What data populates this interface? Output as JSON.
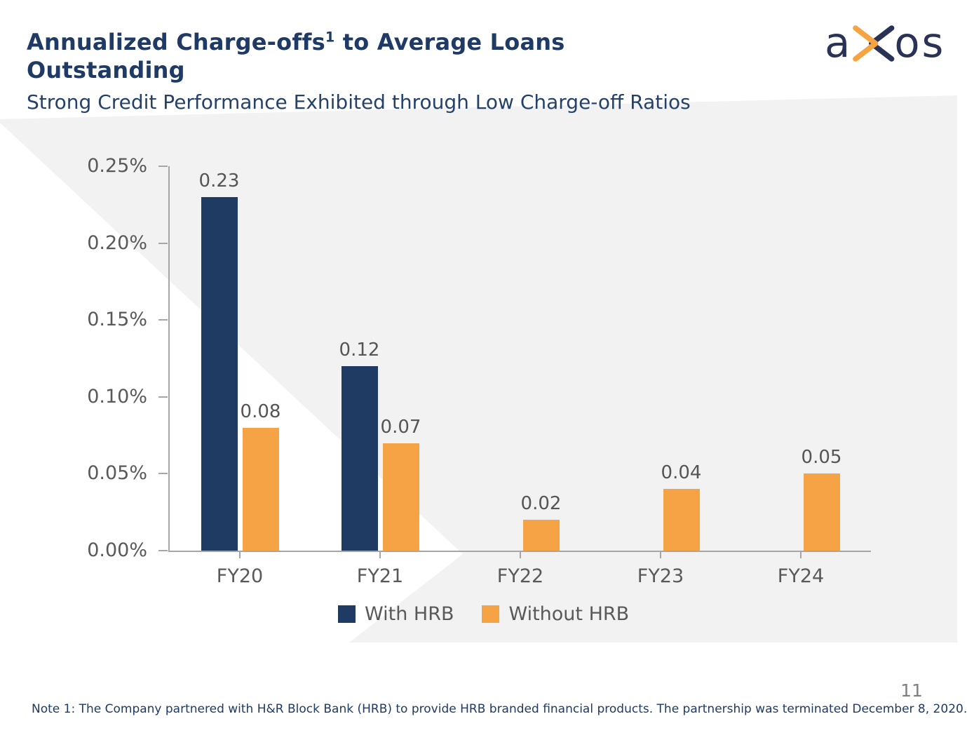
{
  "header": {
    "title_line1_pre": "Annualized Charge-offs",
    "title_superscript": "1",
    "title_line1_post": " to Average Loans",
    "title_line2": "Outstanding",
    "subtitle": "Strong Credit Performance Exhibited through Low Charge-off Ratios"
  },
  "logo": {
    "letter_a": "a",
    "letters_os": "os",
    "navy": "#2a3356",
    "orange": "#f6a441"
  },
  "chart_data": {
    "type": "bar",
    "title": "Annualized Charge-offs to Average Loans Outstanding",
    "categories": [
      "FY20",
      "FY21",
      "FY22",
      "FY23",
      "FY24"
    ],
    "series": [
      {
        "name": "With HRB",
        "color": "#1f3a63",
        "values": [
          0.23,
          0.12,
          null,
          null,
          null
        ]
      },
      {
        "name": "Without HRB",
        "color": "#f5a344",
        "values": [
          0.08,
          0.07,
          0.02,
          0.04,
          0.05
        ]
      }
    ],
    "y_ticks": [
      "0.00%",
      "0.05%",
      "0.10%",
      "0.15%",
      "0.20%",
      "0.25%"
    ],
    "ylim": [
      0,
      0.25
    ],
    "value_label_decimals": 2,
    "grid": false,
    "legend_position": "bottom",
    "axis_color": "#a6a6a6",
    "label_color": "#595959"
  },
  "footnote": "Note 1: The Company partnered with H&R Block Bank (HRB) to provide HRB branded financial products. The partnership was terminated December 8, 2020.",
  "page_number": "11",
  "background": {
    "panel_gray": "#f2f2f2",
    "wedge_white": "#ffffff"
  }
}
